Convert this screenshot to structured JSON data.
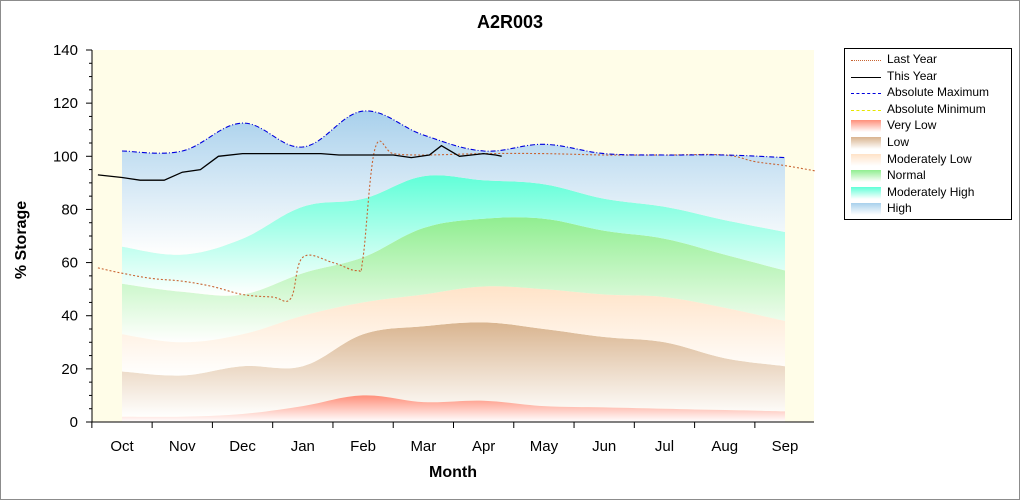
{
  "chart_data": {
    "type": "area",
    "title": "A2R003",
    "xlabel": "Month",
    "ylabel": "% Storage",
    "ylim": [
      0,
      140
    ],
    "yticks": [
      0,
      20,
      40,
      60,
      80,
      100,
      120,
      140
    ],
    "categories": [
      "Oct",
      "Nov",
      "Dec",
      "Jan",
      "Feb",
      "Mar",
      "Apr",
      "May",
      "Jun",
      "Jul",
      "Aug",
      "Sep"
    ],
    "bands": [
      {
        "name": "Very Low",
        "color": "#ff8f7a",
        "lower": [
          2,
          2,
          3,
          6,
          10,
          7.5,
          8,
          6,
          5.5,
          5,
          4.5,
          4
        ],
        "upper": [
          2,
          2,
          3,
          6,
          10,
          7.5,
          8,
          6,
          5.5,
          5,
          4.5,
          4
        ]
      },
      {
        "name": "Low",
        "color": "#d9b48f",
        "lower": [
          2,
          2,
          3,
          6,
          10,
          7.5,
          8,
          6,
          5.5,
          5,
          4.5,
          4
        ],
        "upper": [
          19,
          17.5,
          21,
          21,
          33,
          36,
          37.5,
          35,
          32,
          30,
          24,
          21
        ]
      },
      {
        "name": "Moderately Low",
        "color": "#ffe3c8",
        "lower": [
          19,
          17.5,
          21,
          21,
          33,
          36,
          37.5,
          35,
          32,
          30,
          24,
          21
        ],
        "upper": [
          33,
          30,
          33,
          40,
          45,
          48,
          51,
          50,
          48,
          47,
          43,
          38
        ]
      },
      {
        "name": "Normal",
        "color": "#90ee90",
        "lower": [
          33,
          30,
          33,
          40,
          45,
          48,
          51,
          50,
          48,
          47,
          43,
          38
        ],
        "upper": [
          52,
          49,
          48,
          56,
          62,
          73,
          76.5,
          76.5,
          72,
          69,
          63,
          57
        ]
      },
      {
        "name": "Moderately High",
        "color": "#60ffd8",
        "lower": [
          52,
          49,
          48,
          56,
          62,
          73,
          76.5,
          76.5,
          72,
          69,
          63,
          57
        ],
        "upper": [
          66,
          63,
          69,
          81,
          84,
          92.5,
          91,
          89.5,
          84,
          81,
          76,
          71.5
        ]
      },
      {
        "name": "High",
        "color": "#a8d0ec",
        "lower": [
          66,
          63,
          69,
          81,
          84,
          92.5,
          91,
          89.5,
          84,
          81,
          76,
          71.5
        ],
        "upper": [
          102,
          102,
          112.5,
          103.5,
          117,
          108,
          102,
          104.5,
          101,
          100.5,
          100.5,
          99.5
        ]
      }
    ],
    "series": [
      {
        "name": "Last Year",
        "color": "#c86432",
        "style": "dotted",
        "x": [
          -0.4,
          0,
          0.5,
          1,
          1.5,
          2,
          2.5,
          2.8,
          3,
          3.5,
          3.9,
          4,
          4.2,
          4.5,
          5,
          6,
          7,
          8,
          9,
          10,
          10.5,
          11,
          11.5
        ],
        "values": [
          58,
          56,
          54,
          53,
          51,
          48,
          47,
          46.5,
          62,
          60,
          57,
          62,
          103,
          101,
          100.5,
          101,
          101,
          100.5,
          100.5,
          100.5,
          98,
          96.5,
          94.5
        ]
      },
      {
        "name": "This Year",
        "color": "#000000",
        "style": "solid",
        "x": [
          -0.4,
          0,
          0.3,
          0.7,
          1,
          1.3,
          1.6,
          2,
          2.3,
          2.7,
          3,
          3.3,
          3.6,
          4,
          4.5,
          4.8,
          5.1,
          5.3,
          5.6,
          5.8,
          6,
          6.2,
          6.3
        ],
        "values": [
          93,
          92,
          91,
          91,
          94,
          95,
          100,
          101,
          101,
          101,
          101,
          101,
          100.5,
          100.5,
          100.5,
          99.5,
          100.5,
          104,
          100,
          100.5,
          101,
          100.5,
          100
        ]
      },
      {
        "name": "Absolute Maximum",
        "color": "#0000dd",
        "style": "dashdot",
        "x": [
          0,
          1,
          2,
          3,
          4,
          5,
          6,
          7,
          8,
          9,
          10,
          11
        ],
        "values": [
          102,
          102,
          112.5,
          103.5,
          117,
          108,
          102,
          104.5,
          101,
          100.5,
          100.5,
          99.5
        ]
      },
      {
        "name": "Absolute Minimum",
        "color": "#e6e600",
        "style": "dashed",
        "x": [
          0,
          1,
          2,
          3,
          4,
          5,
          6,
          7,
          8,
          9,
          10,
          11
        ],
        "values": [
          0,
          0,
          0,
          0,
          0,
          0,
          0,
          0,
          0,
          0,
          0,
          0
        ]
      }
    ],
    "legend": {
      "placement": "right",
      "entries": [
        {
          "label": "Last Year",
          "kind": "line",
          "color": "#c86432",
          "style": "dotted"
        },
        {
          "label": "This Year",
          "kind": "line",
          "color": "#000000",
          "style": "solid"
        },
        {
          "label": "Absolute Maximum",
          "kind": "line",
          "color": "#0000dd",
          "style": "dashdot"
        },
        {
          "label": "Absolute Minimum",
          "kind": "line",
          "color": "#e6e600",
          "style": "dashed"
        },
        {
          "label": "Very Low",
          "kind": "fill",
          "color": "#ff8f7a"
        },
        {
          "label": "Low",
          "kind": "fill",
          "color": "#d9b48f"
        },
        {
          "label": "Moderately Low",
          "kind": "fill",
          "color": "#ffe3c8"
        },
        {
          "label": "Normal",
          "kind": "fill",
          "color": "#90ee90"
        },
        {
          "label": "Moderately High",
          "kind": "fill",
          "color": "#60ffd8"
        },
        {
          "label": "High",
          "kind": "fill",
          "color": "#a8d0ec"
        }
      ]
    },
    "background_color": "#fffde8",
    "grid": false
  }
}
